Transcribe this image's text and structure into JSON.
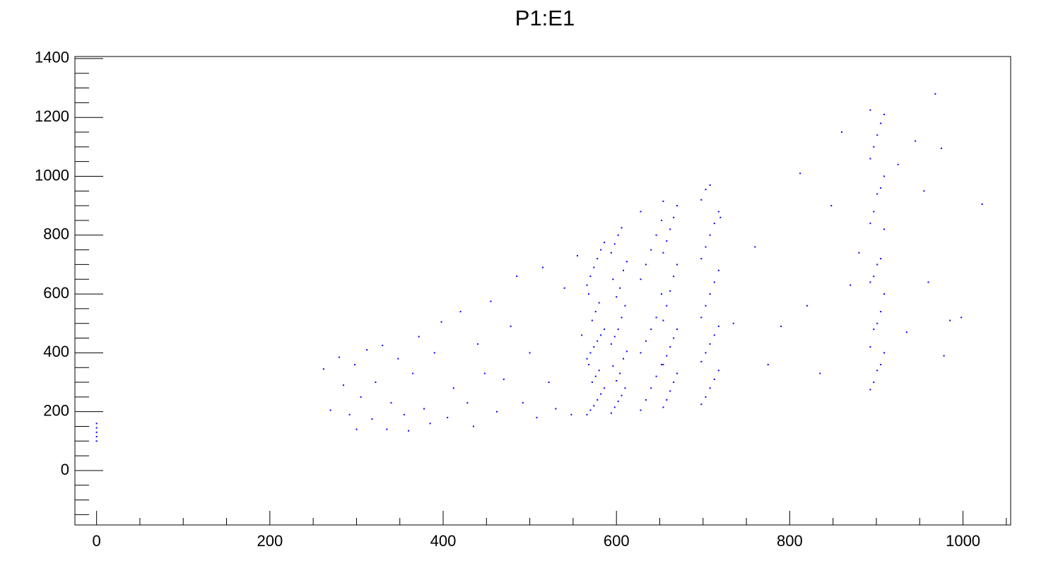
{
  "chart_data": {
    "type": "scatter",
    "title": "P1:E1",
    "color": "#0000ff",
    "xlim": [
      -25,
      1055
    ],
    "ylim": [
      -185,
      1407
    ],
    "xticks": [
      0,
      200,
      400,
      600,
      800,
      1000
    ],
    "yticks": [
      0,
      200,
      400,
      600,
      800,
      1000,
      1200,
      1400
    ],
    "xticks_minor": [
      50,
      100,
      150,
      250,
      300,
      350,
      450,
      500,
      550,
      650,
      700,
      750,
      850,
      900,
      950,
      1050
    ],
    "yticks_minor": [
      -150,
      -100,
      -50,
      50,
      100,
      150,
      250,
      300,
      350,
      450,
      500,
      550,
      650,
      700,
      750,
      850,
      900,
      950,
      1050,
      1100,
      1150,
      1250,
      1300,
      1350
    ],
    "x": [
      0,
      0,
      0,
      0,
      0,
      262,
      270,
      280,
      285,
      292,
      298,
      300,
      305,
      312,
      318,
      322,
      330,
      335,
      340,
      348,
      355,
      360,
      365,
      372,
      378,
      385,
      390,
      398,
      405,
      412,
      420,
      428,
      435,
      440,
      448,
      455,
      462,
      470,
      478,
      485,
      492,
      500,
      508,
      515,
      522,
      530,
      540,
      548,
      555,
      560,
      566,
      570,
      574,
      578,
      582,
      586,
      572,
      576,
      580,
      568,
      566,
      570,
      574,
      578,
      582,
      586,
      572,
      576,
      580,
      568,
      566,
      570,
      574,
      578,
      582,
      586,
      594,
      598,
      602,
      606,
      610,
      600,
      604,
      596,
      608,
      612,
      594,
      598,
      602,
      606,
      610,
      600,
      604,
      596,
      608,
      612,
      594,
      598,
      602,
      606,
      628,
      634,
      640,
      646,
      652,
      628,
      634,
      640,
      646,
      652,
      628,
      634,
      640,
      646,
      652,
      628,
      654,
      658,
      662,
      666,
      670,
      654,
      658,
      662,
      666,
      670,
      654,
      658,
      662,
      666,
      670,
      654,
      658,
      662,
      666,
      670,
      654,
      698,
      703,
      708,
      713,
      718,
      698,
      703,
      708,
      713,
      718,
      698,
      703,
      708,
      713,
      718,
      698,
      703,
      708,
      713,
      718,
      698,
      703,
      708,
      893,
      897,
      901,
      905,
      909,
      893,
      897,
      901,
      905,
      909,
      893,
      897,
      901,
      905,
      909,
      893,
      897,
      901,
      905,
      909,
      893,
      897,
      901,
      905,
      909,
      893,
      720,
      735,
      760,
      775,
      790,
      812,
      820,
      835,
      848,
      860,
      870,
      880,
      925,
      935,
      945,
      955,
      968,
      975,
      985,
      998,
      1022,
      978,
      960
    ],
    "values": [
      100,
      115,
      130,
      145,
      160,
      345,
      205,
      385,
      290,
      190,
      360,
      140,
      250,
      410,
      175,
      300,
      425,
      140,
      230,
      380,
      190,
      135,
      330,
      455,
      210,
      160,
      400,
      505,
      180,
      280,
      540,
      230,
      150,
      430,
      330,
      575,
      200,
      310,
      490,
      660,
      230,
      400,
      180,
      690,
      300,
      210,
      620,
      190,
      730,
      460,
      190,
      205,
      220,
      240,
      260,
      280,
      300,
      320,
      340,
      360,
      380,
      400,
      420,
      440,
      460,
      480,
      510,
      540,
      570,
      600,
      630,
      660,
      690,
      720,
      750,
      775,
      195,
      215,
      235,
      255,
      280,
      305,
      330,
      355,
      380,
      405,
      430,
      455,
      480,
      520,
      560,
      590,
      620,
      650,
      680,
      710,
      740,
      770,
      800,
      825,
      205,
      240,
      280,
      320,
      360,
      400,
      440,
      480,
      520,
      600,
      650,
      700,
      750,
      800,
      850,
      880,
      215,
      240,
      270,
      300,
      330,
      360,
      390,
      420,
      450,
      480,
      510,
      560,
      610,
      660,
      700,
      740,
      780,
      820,
      860,
      900,
      915,
      225,
      250,
      280,
      310,
      340,
      370,
      400,
      430,
      460,
      490,
      520,
      560,
      600,
      640,
      680,
      720,
      760,
      800,
      840,
      880,
      920,
      955,
      970,
      275,
      300,
      340,
      360,
      400,
      420,
      480,
      500,
      540,
      600,
      640,
      660,
      700,
      720,
      820,
      840,
      880,
      940,
      960,
      1000,
      1060,
      1100,
      1140,
      1180,
      1210,
      1225,
      860,
      500,
      760,
      360,
      490,
      1010,
      560,
      330,
      900,
      1150,
      630,
      740,
      1040,
      470,
      1120,
      950,
      1280,
      1095,
      510,
      520,
      905,
      390,
      640
    ]
  }
}
